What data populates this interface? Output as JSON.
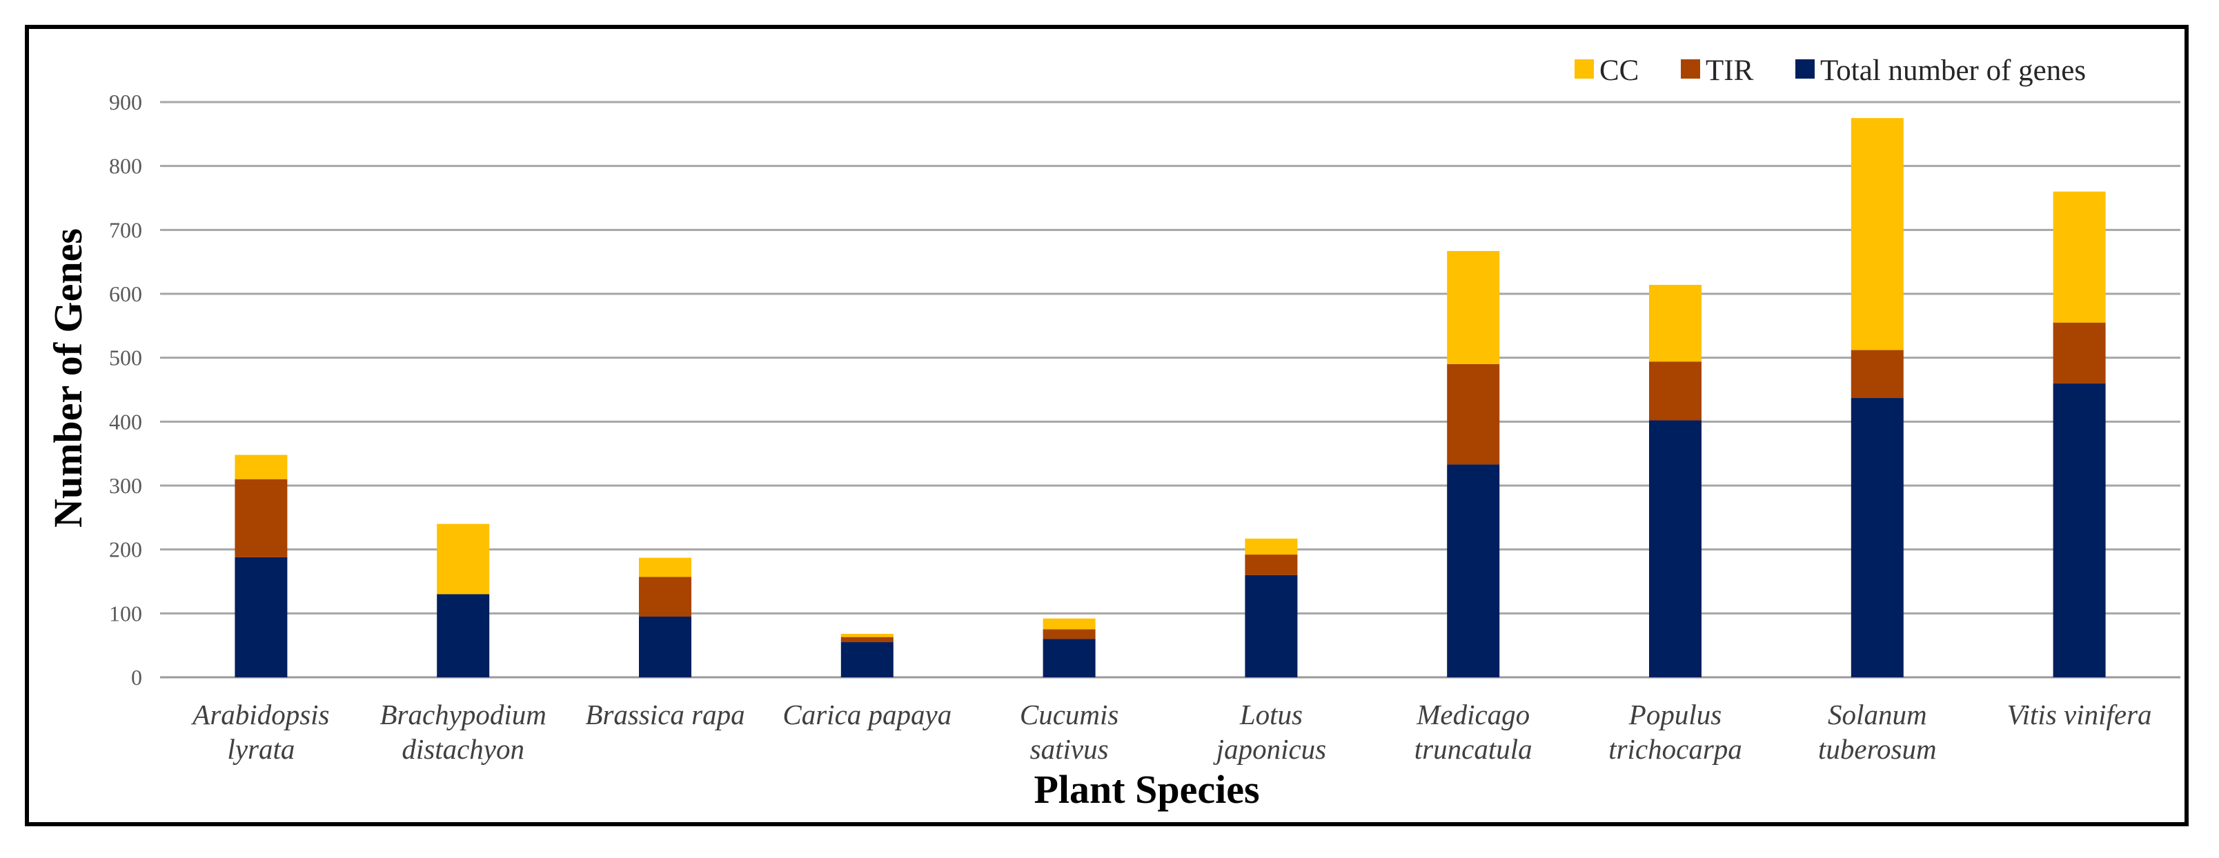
{
  "chart_data": {
    "type": "stacked-bar",
    "title": "",
    "xlabel": "Plant Species",
    "ylabel": "Number of Genes",
    "ylim": [
      0,
      900
    ],
    "yticks": [
      0,
      100,
      200,
      300,
      400,
      500,
      600,
      700,
      800,
      900
    ],
    "grid": true,
    "legend_position": "top-right",
    "categories": [
      [
        "Arabidopsis",
        "lyrata"
      ],
      [
        "Brachypodium",
        "distachyon"
      ],
      [
        "Brassica rapa"
      ],
      [
        "Carica papaya"
      ],
      [
        "Cucumis",
        "sativus"
      ],
      [
        "Lotus",
        "japonicus"
      ],
      [
        "Medicago",
        "truncatula"
      ],
      [
        "Populus",
        "trichocarpa"
      ],
      [
        "Solanum",
        "tuberosum"
      ],
      [
        "Vitis vinifera"
      ]
    ],
    "series": [
      {
        "name": "Total number of genes",
        "color": "#001F5F",
        "values": [
          188,
          130,
          95,
          55,
          60,
          160,
          333,
          402,
          437,
          460
        ]
      },
      {
        "name": "TIR",
        "color": "#A84300",
        "values": [
          122,
          0,
          62,
          8,
          15,
          32,
          157,
          92,
          75,
          95
        ]
      },
      {
        "name": "CC",
        "color": "#FFC000",
        "values": [
          38,
          110,
          30,
          5,
          17,
          25,
          177,
          120,
          363,
          205
        ]
      }
    ],
    "legend_order": [
      "CC",
      "TIR",
      "Total number of genes"
    ]
  }
}
